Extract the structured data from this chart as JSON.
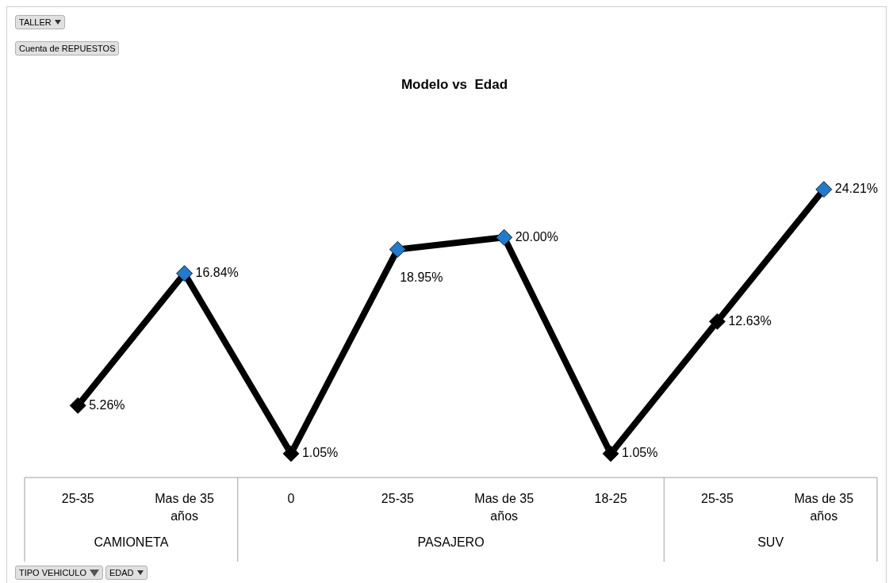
{
  "chart_data": {
    "type": "line",
    "title": "Modelo vs  Edad",
    "categories": [
      "25-35",
      "Mas de 35 años",
      "0",
      "25-35",
      "Mas de 35 años",
      "18-25",
      "25-35",
      "Mas de 35 años"
    ],
    "series": [
      {
        "color": "#000000",
        "colors": [
          "#000000",
          "#1f7bd1",
          "#000000",
          "#1f7bd1",
          "#1f7bd1",
          "#000000",
          "#000000",
          "#1f7bd1"
        ],
        "values": [
          5.26,
          16.84,
          1.05,
          18.95,
          20.0,
          1.05,
          12.63,
          24.21
        ],
        "value_labels": [
          "5.26%",
          "16.84%",
          "1.05%",
          "18.95%",
          "20.00%",
          "1.05%",
          "12.63%",
          "24.21%"
        ]
      }
    ],
    "marker": "diamond",
    "legend": false,
    "tick_labels": "x",
    "annotations": [
      "TALLER",
      "Cuenta de REPUESTOS",
      "TIPO VEHICULO",
      "EDAD",
      "CAMIONETA",
      "PASAJERO",
      "SUV"
    ]
  }
}
